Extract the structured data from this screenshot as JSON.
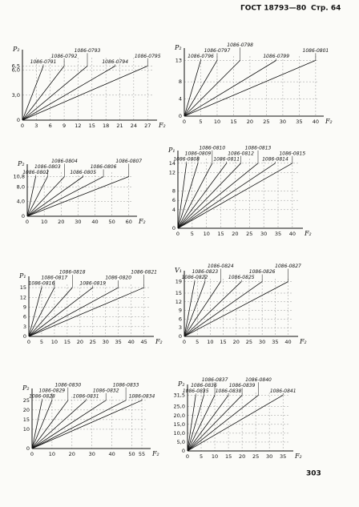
{
  "header": {
    "title": "ГОСТ 18793—80",
    "page": "Стр. 64"
  },
  "charts": [
    {
      "ylabel": "P₂",
      "xlabel": "F₂",
      "xlim": [
        0,
        28
      ],
      "ylim": [
        0,
        7.5
      ],
      "xticks": [
        0,
        3,
        6,
        9,
        12,
        15,
        18,
        21,
        24,
        27
      ],
      "yticks": [
        0,
        {
          "value": 3,
          "label": "3,0"
        },
        {
          "value": 6,
          "label": "6,0"
        },
        {
          "value": 6.5,
          "label": "6,5"
        }
      ],
      "lines": [
        {
          "label": "1086-0791",
          "x": 4.5,
          "y": 6.5
        },
        {
          "label": "1086-0792",
          "x": 9,
          "y": 6.5
        },
        {
          "label": "1086-0793",
          "x": 14,
          "y": 6.5
        },
        {
          "label": "1086-0794",
          "x": 20,
          "y": 6.5
        },
        {
          "label": "1086-0795",
          "x": 27,
          "y": 6.5
        }
      ]
    },
    {
      "ylabel": "P₂",
      "xlabel": "F₂",
      "xlim": [
        0,
        41
      ],
      "ylim": [
        0,
        14
      ],
      "xticks": [
        0,
        5,
        10,
        15,
        20,
        25,
        30,
        35,
        40
      ],
      "yticks": [
        0,
        4,
        8,
        13
      ],
      "lines": [
        {
          "label": "1086-0796",
          "x": 5,
          "y": 13
        },
        {
          "label": "1086-0797",
          "x": 10,
          "y": 13
        },
        {
          "label": "1086-0798",
          "x": 17,
          "y": 13
        },
        {
          "label": "1086-0799",
          "x": 28,
          "y": 13
        },
        {
          "label": "1086-0801",
          "x": 40,
          "y": 13
        }
      ]
    },
    {
      "ylabel": "P₂",
      "xlabel": "F₂",
      "xlim": [
        0,
        62
      ],
      "ylim": [
        0,
        12
      ],
      "xticks": [
        0,
        10,
        20,
        30,
        40,
        50,
        60
      ],
      "yticks": [
        0,
        {
          "value": 4,
          "label": "4,0"
        },
        {
          "value": 8,
          "label": "8,0"
        },
        {
          "value": 10.8,
          "label": "10,8"
        }
      ],
      "lines": [
        {
          "label": "1086-0802",
          "x": 5,
          "y": 10.8
        },
        {
          "label": "1086-0803",
          "x": 12,
          "y": 10.8
        },
        {
          "label": "1086-0804",
          "x": 22,
          "y": 10.8
        },
        {
          "label": "1086-0805",
          "x": 33,
          "y": 10.8
        },
        {
          "label": "1086-0806",
          "x": 45,
          "y": 10.8
        },
        {
          "label": "1086-0807",
          "x": 60,
          "y": 10.8
        }
      ]
    },
    {
      "ylabel": "P₁",
      "xlabel": "F₂",
      "xlim": [
        0,
        42
      ],
      "ylim": [
        0,
        15
      ],
      "xticks": [
        0,
        5,
        10,
        15,
        20,
        25,
        30,
        35,
        40
      ],
      "yticks": [
        0,
        4,
        6,
        8,
        12,
        14
      ],
      "lines": [
        {
          "label": "1086-0808",
          "x": 3,
          "y": 14
        },
        {
          "label": "1086-0809",
          "x": 7,
          "y": 14
        },
        {
          "label": "1086-0810",
          "x": 12,
          "y": 14
        },
        {
          "label": "1086-0811",
          "x": 17,
          "y": 14
        },
        {
          "label": "1086-0812",
          "x": 22,
          "y": 14
        },
        {
          "label": "1086-0813",
          "x": 28,
          "y": 14
        },
        {
          "label": "1086-0814",
          "x": 34,
          "y": 14
        },
        {
          "label": "1086-0815",
          "x": 40,
          "y": 14
        }
      ]
    },
    {
      "ylabel": "P₁",
      "xlabel": "F₂",
      "xlim": [
        0,
        47
      ],
      "ylim": [
        0,
        16
      ],
      "xticks": [
        0,
        5,
        10,
        15,
        20,
        25,
        30,
        35,
        40,
        45
      ],
      "yticks": [
        0,
        3,
        6,
        9,
        12,
        15
      ],
      "lines": [
        {
          "label": "1086-0816",
          "x": 5,
          "y": 15
        },
        {
          "label": "1086-0817",
          "x": 10,
          "y": 15
        },
        {
          "label": "1086-0818",
          "x": 17,
          "y": 15
        },
        {
          "label": "1086-0819",
          "x": 25,
          "y": 15
        },
        {
          "label": "1086-0820",
          "x": 35,
          "y": 15
        },
        {
          "label": "1086-0821",
          "x": 45,
          "y": 15
        }
      ]
    },
    {
      "ylabel": "V₁",
      "xlabel": "F₂",
      "xlim": [
        0,
        42
      ],
      "ylim": [
        0,
        20
      ],
      "xticks": [
        0,
        5,
        10,
        15,
        20,
        25,
        30,
        35,
        40
      ],
      "yticks": [
        0,
        3,
        6,
        9,
        12,
        15,
        19
      ],
      "lines": [
        {
          "label": "1086-0822",
          "x": 4,
          "y": 19
        },
        {
          "label": "1086-0823",
          "x": 8,
          "y": 19
        },
        {
          "label": "1086-0824",
          "x": 14,
          "y": 19
        },
        {
          "label": "1086-0825",
          "x": 22,
          "y": 19
        },
        {
          "label": "1086-0826",
          "x": 30,
          "y": 19
        },
        {
          "label": "1086-0827",
          "x": 40,
          "y": 19
        }
      ]
    },
    {
      "ylabel": "P₂",
      "xlabel": "F₂",
      "xlim": [
        0,
        57
      ],
      "ylim": [
        0,
        27
      ],
      "xticks": [
        0,
        10,
        20,
        30,
        40,
        50,
        55
      ],
      "yticks": [
        0,
        10,
        15,
        20,
        25
      ],
      "lines": [
        {
          "label": "1086-0828",
          "x": 5,
          "y": 25
        },
        {
          "label": "1086-0829",
          "x": 10,
          "y": 25
        },
        {
          "label": "1086-0830",
          "x": 18,
          "y": 25
        },
        {
          "label": "1086-0831",
          "x": 27,
          "y": 25
        },
        {
          "label": "1086-0832",
          "x": 37,
          "y": 25
        },
        {
          "label": "1086-0833",
          "x": 47,
          "y": 25
        },
        {
          "label": "1086-0834",
          "x": 55,
          "y": 25
        }
      ]
    },
    {
      "ylabel": "P₂",
      "xlabel": "F₂",
      "xlim": [
        0,
        37
      ],
      "ylim": [
        0,
        33
      ],
      "xticks": [
        0,
        5,
        10,
        15,
        20,
        25,
        30,
        35
      ],
      "yticks": [
        0,
        {
          "value": 5,
          "label": "5,0"
        },
        {
          "value": 10,
          "label": "10,0"
        },
        {
          "value": 15,
          "label": "15,0"
        },
        {
          "value": 20,
          "label": "20,0"
        },
        {
          "value": 25,
          "label": "25,0"
        },
        {
          "value": 31.5,
          "label": "31,5"
        }
      ],
      "lines": [
        {
          "label": "1086-0835",
          "x": 3,
          "y": 31.5
        },
        {
          "label": "1086-0836",
          "x": 6,
          "y": 31.5
        },
        {
          "label": "1086-0837",
          "x": 10,
          "y": 31.5
        },
        {
          "label": "1086-0838",
          "x": 15,
          "y": 31.5
        },
        {
          "label": "1086-0839",
          "x": 20,
          "y": 31.5
        },
        {
          "label": "1086-0840",
          "x": 26,
          "y": 31.5
        },
        {
          "label": "1086-0841",
          "x": 35,
          "y": 31.5
        }
      ]
    }
  ],
  "footer": {
    "page_number": "303"
  }
}
